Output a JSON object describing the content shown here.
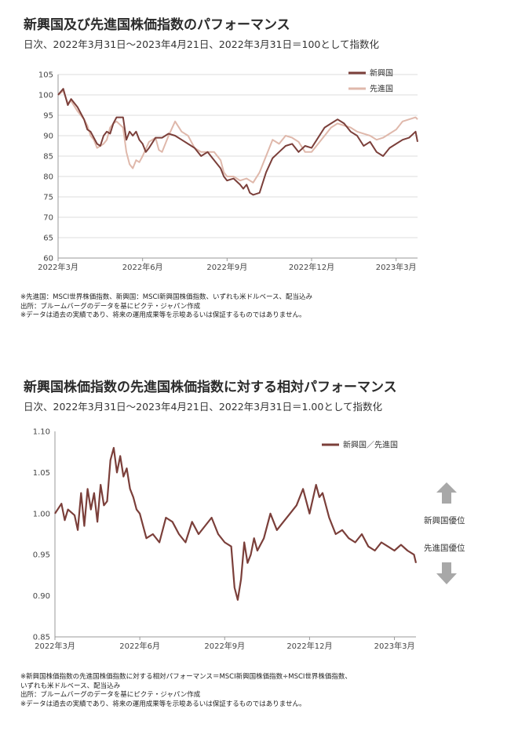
{
  "chart1": {
    "title": "新興国及び先進国株価指数のパフォーマンス",
    "subtitle": "日次、2022年3月31日～2023年4月21日、2022年3月31日＝100として指数化",
    "notes": [
      "※先進国：MSCI世界株価指数、新興国：MSCI新興国株価指数、いずれも米ドルベース、配当込み",
      "出所：ブルームバーグのデータを基にピクテ・ジャパン作成",
      "※データは過去の実績であり、将来の運用成果等を示唆あるいは保証するものではありません。"
    ]
  },
  "chart2": {
    "title": "新興国株価指数の先進国株価指数に対する相対パフォーマンス",
    "subtitle": "日次、2022年3月31日～2023年4月21日、2022年3月31日＝1.00として指数化",
    "up_label": "新興国優位",
    "down_label": "先進国優位",
    "notes": [
      "※新興国株価指数の先進国株価指数に対する相対パフォーマンス＝MSCI新興国株価指数÷MSCI世界株価指数、",
      "いずれも米ドルベース、配当込み",
      "出所：ブルームバーグのデータを基にピクテ・ジャパン作成",
      "※データは過去の実績であり、将来の運用成果等を示唆あるいは保証するものではありません。"
    ]
  },
  "colors": {
    "emerging": "#7b3f3a",
    "developed": "#dfb8ab",
    "relative": "#7b3f3a",
    "grid": "#dddddd",
    "arrow": "#a8a8a8"
  },
  "chart_data": [
    {
      "type": "line",
      "title": "新興国及び先進国株価指数のパフォーマンス",
      "xlim": [
        0,
        55.3
      ],
      "ylim": [
        60,
        105
      ],
      "yticks": [
        60,
        65,
        70,
        75,
        80,
        85,
        90,
        95,
        100,
        105
      ],
      "xticks": [
        {
          "pos": 0,
          "label": "2022年3月"
        },
        {
          "pos": 13,
          "label": "2022年6月"
        },
        {
          "pos": 26,
          "label": "2022年9月"
        },
        {
          "pos": 39,
          "label": "2022年12月"
        },
        {
          "pos": 52,
          "label": "2023年3月"
        }
      ],
      "legend": "top-right",
      "series": [
        {
          "name": "新興国",
          "color": "#7b3f3a",
          "x": [
            0,
            0.8,
            1.5,
            2,
            3,
            4,
            4.5,
            5,
            6,
            6.5,
            7,
            7.5,
            8,
            8.5,
            9,
            10,
            10.5,
            11,
            11.5,
            12,
            12.5,
            13,
            13.5,
            14,
            15,
            16,
            17,
            18,
            19,
            20,
            21,
            22,
            23,
            24,
            25,
            25.5,
            26,
            27,
            28,
            28.5,
            29,
            29.5,
            30,
            31,
            32,
            33,
            34,
            35,
            36,
            37,
            38,
            39,
            40,
            41,
            42,
            43,
            44,
            45,
            46,
            47,
            48,
            49,
            50,
            51,
            52,
            53,
            54,
            55,
            55.3
          ],
          "y": [
            100,
            101.5,
            97.5,
            99,
            97,
            94,
            91.5,
            91,
            88,
            87.5,
            90,
            91,
            90.5,
            93,
            94.5,
            94.5,
            89,
            91,
            90,
            91,
            89,
            88,
            86,
            87,
            89.5,
            89.5,
            90.5,
            90,
            89,
            88,
            87,
            85,
            86,
            84,
            82,
            80,
            79,
            79.5,
            78,
            77,
            78,
            76,
            75.5,
            76,
            81,
            84.5,
            86,
            87.5,
            88,
            86,
            87.5,
            87,
            89.5,
            92,
            93,
            94,
            93,
            91,
            90,
            87.5,
            88.5,
            86,
            85,
            87,
            88,
            89,
            89.5,
            91,
            88.5
          ]
        },
        {
          "name": "先進国",
          "color": "#dfb8ab",
          "x": [
            0,
            0.8,
            1.5,
            2,
            3,
            4,
            4.5,
            5,
            5.5,
            6,
            7,
            7.5,
            8,
            8.5,
            9,
            10,
            10.5,
            11,
            11.5,
            12,
            12.5,
            13,
            14,
            15,
            15.5,
            16,
            17,
            18,
            19,
            20,
            21,
            22,
            23,
            24,
            25,
            25.5,
            26,
            27,
            28,
            29,
            30,
            31,
            32,
            33,
            34,
            35,
            36,
            37,
            38,
            39,
            40,
            41,
            42,
            43,
            44,
            45,
            46,
            47,
            48,
            49,
            50,
            51,
            52,
            53,
            54,
            55,
            55.3
          ],
          "y": [
            100,
            101,
            98,
            98.5,
            96,
            94,
            92.5,
            90,
            89,
            87,
            88,
            89,
            92,
            93,
            93.5,
            92,
            86,
            83,
            82,
            84,
            83.5,
            85,
            88.5,
            89.5,
            86.5,
            86,
            90,
            93.5,
            91,
            90,
            87,
            86,
            86,
            86,
            84,
            81,
            80,
            80,
            79,
            79.5,
            78.5,
            81,
            85,
            89,
            88,
            90,
            89.5,
            88.5,
            86,
            86,
            88,
            90,
            92,
            93,
            92.5,
            92,
            91,
            90.5,
            90,
            89,
            89.5,
            90.5,
            91.5,
            93.5,
            94,
            94.5,
            94
          ]
        }
      ]
    },
    {
      "type": "line",
      "title": "新興国株価指数の先進国株価指数に対する相対パフォーマンス",
      "xlim": [
        0,
        55.3
      ],
      "ylim": [
        0.85,
        1.1
      ],
      "yticks": [
        0.85,
        0.9,
        0.95,
        1.0,
        1.05,
        1.1
      ],
      "xticks": [
        {
          "pos": 0,
          "label": "2022年3月"
        },
        {
          "pos": 13,
          "label": "2022年6月"
        },
        {
          "pos": 26,
          "label": "2022年9月"
        },
        {
          "pos": 39,
          "label": "2022年12月"
        },
        {
          "pos": 52,
          "label": "2023年3月"
        }
      ],
      "legend": "top-right",
      "series": [
        {
          "name": "新興国／先進国",
          "color": "#7b3f3a",
          "x": [
            0,
            1,
            1.5,
            2,
            3,
            3.5,
            4,
            4.5,
            5,
            5.5,
            6,
            6.5,
            7,
            7.5,
            8,
            8.5,
            9,
            9.5,
            10,
            10.5,
            11,
            11.5,
            12,
            12.5,
            13,
            13.5,
            14,
            15,
            16,
            17,
            18,
            19,
            20,
            21,
            22,
            23,
            24,
            25,
            26,
            27,
            27.5,
            28,
            28.5,
            29,
            29.5,
            30,
            30.5,
            31,
            32,
            33,
            34,
            35,
            36,
            37,
            38,
            39,
            40,
            40.5,
            41,
            42,
            43,
            44,
            45,
            46,
            47,
            48,
            49,
            50,
            51,
            52,
            53,
            54,
            55,
            55.3
          ],
          "y": [
            1.0,
            1.012,
            0.992,
            1.005,
            0.998,
            0.98,
            1.025,
            0.985,
            1.03,
            1.005,
            1.025,
            0.99,
            1.035,
            1.01,
            1.015,
            1.065,
            1.08,
            1.05,
            1.07,
            1.045,
            1.055,
            1.03,
            1.02,
            1.005,
            1.0,
            0.985,
            0.97,
            0.975,
            0.965,
            0.995,
            0.99,
            0.975,
            0.965,
            0.99,
            0.975,
            0.985,
            0.995,
            0.975,
            0.965,
            0.96,
            0.91,
            0.895,
            0.92,
            0.965,
            0.94,
            0.95,
            0.97,
            0.955,
            0.97,
            1.0,
            0.98,
            0.99,
            1.0,
            1.01,
            1.03,
            1.0,
            1.035,
            1.02,
            1.025,
            0.995,
            0.975,
            0.98,
            0.97,
            0.965,
            0.975,
            0.96,
            0.955,
            0.965,
            0.96,
            0.955,
            0.962,
            0.955,
            0.95,
            0.94
          ]
        }
      ]
    }
  ]
}
